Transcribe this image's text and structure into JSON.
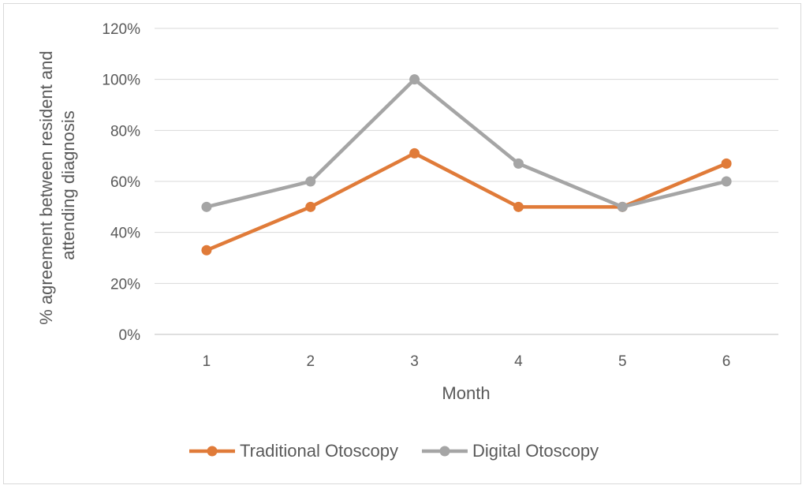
{
  "chart_data": {
    "type": "line",
    "categories": [
      "1",
      "2",
      "3",
      "4",
      "5",
      "6"
    ],
    "series": [
      {
        "name": "Traditional Otoscopy",
        "color": "#e07b39",
        "values": [
          33,
          50,
          71,
          50,
          50,
          67
        ]
      },
      {
        "name": "Digital Otoscopy",
        "color": "#a5a5a5",
        "values": [
          50,
          60,
          100,
          67,
          50,
          60
        ]
      }
    ],
    "title": "",
    "xlabel": "Month",
    "ylabel_lines": [
      "% agreement between resident and",
      "attending diagnosis"
    ],
    "ylim": [
      0,
      120
    ],
    "yticks": [
      0,
      20,
      40,
      60,
      80,
      100,
      120
    ],
    "ytick_labels": [
      "0%",
      "20%",
      "40%",
      "60%",
      "80%",
      "100%",
      "120%"
    ],
    "grid": true,
    "legend_position": "bottom"
  }
}
